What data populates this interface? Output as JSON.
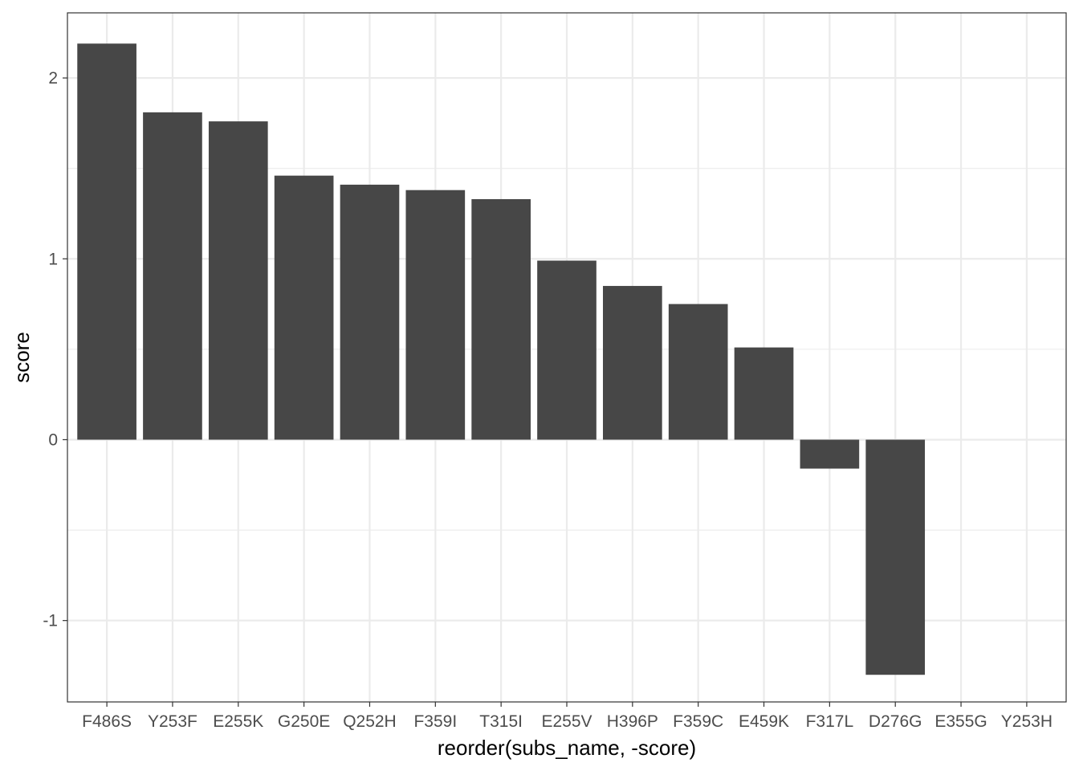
{
  "chart_data": {
    "type": "bar",
    "title": "",
    "xlabel": "reorder(subs_name, -score)",
    "ylabel": "score",
    "categories": [
      "F486S",
      "Y253F",
      "E255K",
      "G250E",
      "Q252H",
      "F359I",
      "T315I",
      "E255V",
      "H396P",
      "F359C",
      "E459K",
      "F317L",
      "D276G",
      "E355G",
      "Y253H"
    ],
    "values": [
      2.19,
      1.81,
      1.76,
      1.46,
      1.41,
      1.38,
      1.33,
      0.99,
      0.85,
      0.75,
      0.51,
      -0.16,
      -1.3,
      0,
      0
    ],
    "ylim": [
      -1.45,
      2.36
    ],
    "yticks": [
      -1,
      0,
      1,
      2
    ],
    "ytick_labels": [
      "-1",
      "0",
      "1",
      "2"
    ],
    "grid": true,
    "bar_color": "#474747",
    "grid_color": "#ebebeb",
    "panel_border_color": "#333333"
  }
}
